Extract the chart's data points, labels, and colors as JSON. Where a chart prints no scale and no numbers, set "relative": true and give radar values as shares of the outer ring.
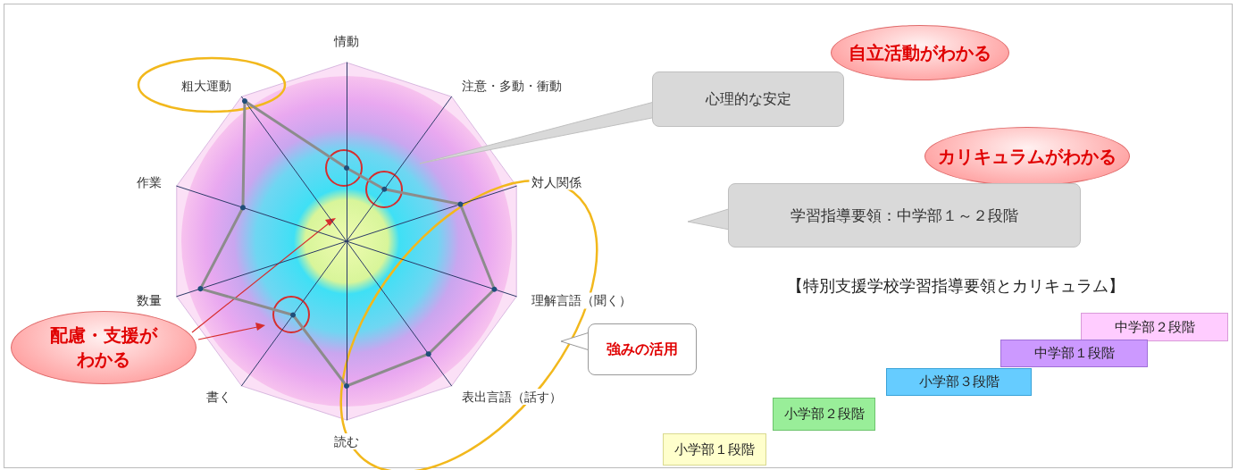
{
  "chart_data": {
    "type": "radar",
    "relative": true,
    "marker": "circle",
    "categories": [
      "情動",
      "注意・多動・衝動",
      "対人関係",
      "理解言語（聞く）",
      "表出言語（話す）",
      "読む",
      "書く",
      "数量",
      "作業",
      "粗大運動"
    ],
    "series": [
      {
        "color": "#8c8c8c",
        "values": [
          0.41,
          0.36,
          0.67,
          0.87,
          0.78,
          0.81,
          0.51,
          0.86,
          0.61,
          0.97
        ]
      }
    ],
    "annotations": [
      "自立活動がわかる",
      "心理的な安定",
      "カリキュラムがわかる",
      "学習指導要領：中学部１～２段階",
      "【特別支援学校学習指導要領とカリキュラム】",
      "中学部２段階",
      "中学部１段階",
      "小学部３段階",
      "小学部２段階",
      "小学部１段階",
      "強みの活用",
      "配慮・支援がわかる"
    ]
  }
}
